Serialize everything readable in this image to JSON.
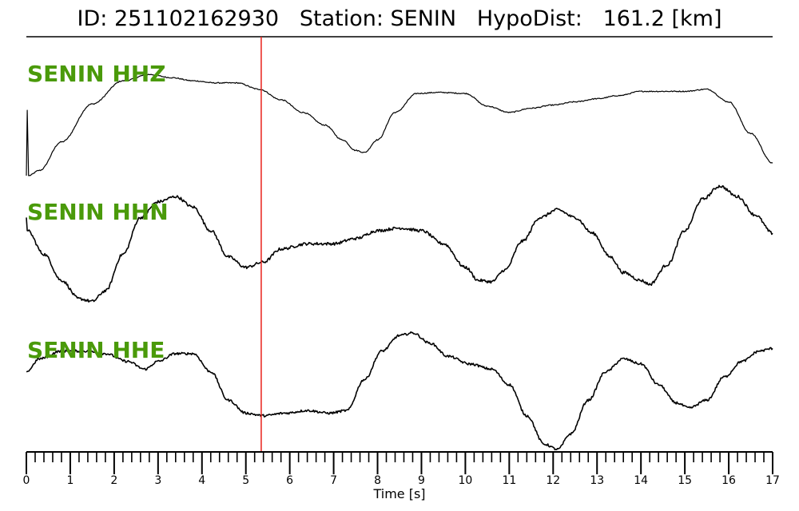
{
  "header": {
    "id_label": "ID:",
    "id_value": "251102162930",
    "station_label": "Station:",
    "station_value": "SENIN",
    "dist_label": "HypoDist:",
    "dist_value": "161.2",
    "dist_unit": "[km]"
  },
  "chart_data": {
    "type": "line",
    "xlabel": "Time [s]",
    "xlim": [
      0,
      17
    ],
    "x_major_ticks": [
      0,
      1,
      2,
      3,
      4,
      5,
      6,
      7,
      8,
      9,
      10,
      11,
      12,
      13,
      14,
      15,
      16,
      17
    ],
    "x_minor_step": 0.2,
    "marker_line": {
      "x": 5.35,
      "color": "#e8201a"
    },
    "label_color": "#4a9a0a",
    "series": [
      {
        "name": "SENIN HHZ",
        "noise": 0.01,
        "points": [
          [
            0,
            0.0
          ],
          [
            0.02,
            0.62
          ],
          [
            0.05,
            0.0
          ],
          [
            0.3,
            0.05
          ],
          [
            0.8,
            0.32
          ],
          [
            1.5,
            0.68
          ],
          [
            2.2,
            0.9
          ],
          [
            2.8,
            0.96
          ],
          [
            3.3,
            0.93
          ],
          [
            3.8,
            0.9
          ],
          [
            4.3,
            0.88
          ],
          [
            4.8,
            0.88
          ],
          [
            5.3,
            0.82
          ],
          [
            5.8,
            0.72
          ],
          [
            6.3,
            0.6
          ],
          [
            6.8,
            0.48
          ],
          [
            7.2,
            0.34
          ],
          [
            7.5,
            0.24
          ],
          [
            7.7,
            0.22
          ],
          [
            8.0,
            0.34
          ],
          [
            8.4,
            0.6
          ],
          [
            8.9,
            0.78
          ],
          [
            9.4,
            0.79
          ],
          [
            10.0,
            0.78
          ],
          [
            10.5,
            0.66
          ],
          [
            11.0,
            0.6
          ],
          [
            11.5,
            0.64
          ],
          [
            12.0,
            0.67
          ],
          [
            12.5,
            0.7
          ],
          [
            13.0,
            0.73
          ],
          [
            13.5,
            0.76
          ],
          [
            14.0,
            0.8
          ],
          [
            14.5,
            0.8
          ],
          [
            15.0,
            0.8
          ],
          [
            15.5,
            0.82
          ],
          [
            16.0,
            0.7
          ],
          [
            16.5,
            0.4
          ],
          [
            17.0,
            0.12
          ]
        ]
      },
      {
        "name": "SENIN HHN",
        "noise": 0.022,
        "points": [
          [
            0,
            0.68
          ],
          [
            0.02,
            0.58
          ],
          [
            0.4,
            0.4
          ],
          [
            0.8,
            0.2
          ],
          [
            1.2,
            0.06
          ],
          [
            1.5,
            0.04
          ],
          [
            1.8,
            0.12
          ],
          [
            2.2,
            0.4
          ],
          [
            2.6,
            0.68
          ],
          [
            3.0,
            0.8
          ],
          [
            3.4,
            0.84
          ],
          [
            3.8,
            0.76
          ],
          [
            4.2,
            0.58
          ],
          [
            4.6,
            0.38
          ],
          [
            5.0,
            0.3
          ],
          [
            5.4,
            0.34
          ],
          [
            5.8,
            0.44
          ],
          [
            6.4,
            0.48
          ],
          [
            7.0,
            0.48
          ],
          [
            7.5,
            0.52
          ],
          [
            8.0,
            0.58
          ],
          [
            8.5,
            0.6
          ],
          [
            9.0,
            0.58
          ],
          [
            9.5,
            0.48
          ],
          [
            10.0,
            0.3
          ],
          [
            10.3,
            0.2
          ],
          [
            10.6,
            0.19
          ],
          [
            10.9,
            0.28
          ],
          [
            11.3,
            0.5
          ],
          [
            11.7,
            0.68
          ],
          [
            12.1,
            0.74
          ],
          [
            12.5,
            0.68
          ],
          [
            12.9,
            0.56
          ],
          [
            13.3,
            0.38
          ],
          [
            13.6,
            0.26
          ],
          [
            14.0,
            0.2
          ],
          [
            14.2,
            0.17
          ],
          [
            14.6,
            0.32
          ],
          [
            15.0,
            0.58
          ],
          [
            15.4,
            0.82
          ],
          [
            15.8,
            0.92
          ],
          [
            16.2,
            0.84
          ],
          [
            16.6,
            0.7
          ],
          [
            17.0,
            0.56
          ]
        ]
      },
      {
        "name": "SENIN HHE",
        "noise": 0.018,
        "points": [
          [
            0,
            0.62
          ],
          [
            0.3,
            0.72
          ],
          [
            0.8,
            0.78
          ],
          [
            1.3,
            0.78
          ],
          [
            1.8,
            0.76
          ],
          [
            2.3,
            0.7
          ],
          [
            2.7,
            0.64
          ],
          [
            3.0,
            0.7
          ],
          [
            3.4,
            0.76
          ],
          [
            3.8,
            0.76
          ],
          [
            4.2,
            0.62
          ],
          [
            4.6,
            0.4
          ],
          [
            5.0,
            0.3
          ],
          [
            5.4,
            0.28
          ],
          [
            5.9,
            0.3
          ],
          [
            6.4,
            0.32
          ],
          [
            6.9,
            0.3
          ],
          [
            7.3,
            0.32
          ],
          [
            7.7,
            0.56
          ],
          [
            8.1,
            0.78
          ],
          [
            8.5,
            0.9
          ],
          [
            8.8,
            0.92
          ],
          [
            9.2,
            0.84
          ],
          [
            9.6,
            0.74
          ],
          [
            10.1,
            0.68
          ],
          [
            10.6,
            0.64
          ],
          [
            11.0,
            0.52
          ],
          [
            11.4,
            0.28
          ],
          [
            11.8,
            0.06
          ],
          [
            12.1,
            0.02
          ],
          [
            12.4,
            0.14
          ],
          [
            12.8,
            0.4
          ],
          [
            13.2,
            0.62
          ],
          [
            13.6,
            0.72
          ],
          [
            14.0,
            0.68
          ],
          [
            14.4,
            0.52
          ],
          [
            14.8,
            0.38
          ],
          [
            15.1,
            0.34
          ],
          [
            15.5,
            0.4
          ],
          [
            15.9,
            0.58
          ],
          [
            16.3,
            0.7
          ],
          [
            16.7,
            0.78
          ],
          [
            17.0,
            0.8
          ]
        ]
      }
    ]
  }
}
